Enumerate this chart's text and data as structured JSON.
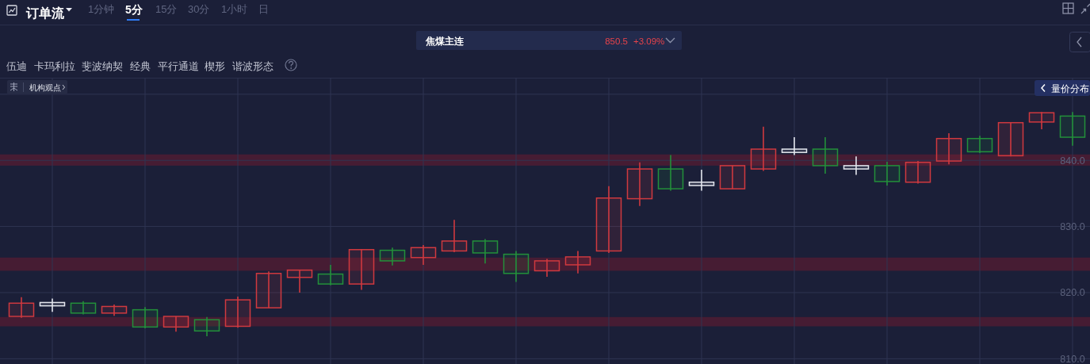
{
  "chart_data": {
    "type": "candlestick",
    "title": "焦煤主连",
    "categories": [
      null,
      null,
      null,
      null,
      null,
      null,
      null,
      null,
      null,
      null,
      null,
      null,
      null,
      null,
      null,
      null,
      null,
      null,
      null,
      null,
      null,
      null,
      null,
      null,
      null,
      null,
      null,
      null,
      null,
      null,
      null,
      null,
      null,
      null,
      null
    ],
    "ohlc": [
      [
        816.4,
        819.3,
        816.2,
        818.4
      ],
      [
        818.0,
        819.1,
        817.1,
        818.5
      ],
      [
        818.4,
        818.7,
        816.7,
        816.9
      ],
      [
        816.9,
        818.2,
        816.5,
        817.9
      ],
      [
        817.4,
        817.8,
        814.6,
        814.8
      ],
      [
        814.8,
        816.4,
        814.1,
        816.4
      ],
      [
        815.9,
        816.3,
        813.4,
        814.2
      ],
      [
        814.9,
        819.4,
        814.7,
        818.9
      ],
      [
        817.7,
        823.2,
        817.7,
        822.9
      ],
      [
        822.3,
        823.4,
        820.0,
        823.4
      ],
      [
        822.8,
        824.2,
        821.1,
        821.3
      ],
      [
        821.3,
        826.6,
        820.4,
        826.5
      ],
      [
        826.4,
        826.8,
        824.1,
        824.8
      ],
      [
        825.3,
        827.2,
        824.2,
        826.8
      ],
      [
        826.3,
        831.0,
        826.1,
        827.8
      ],
      [
        827.8,
        828.1,
        824.4,
        826.0
      ],
      [
        825.8,
        826.3,
        821.6,
        822.9
      ],
      [
        823.3,
        825.1,
        822.4,
        824.8
      ],
      [
        824.2,
        826.3,
        822.9,
        825.4
      ],
      [
        826.3,
        836.1,
        826.0,
        834.3
      ],
      [
        834.2,
        839.7,
        833.1,
        838.7
      ],
      [
        838.7,
        840.8,
        835.4,
        835.7
      ],
      [
        836.2,
        838.6,
        835.4,
        836.7
      ],
      [
        835.7,
        839.2,
        835.7,
        839.2
      ],
      [
        838.7,
        845.1,
        838.4,
        841.7
      ],
      [
        841.2,
        843.5,
        840.8,
        841.7
      ],
      [
        841.7,
        843.5,
        838.0,
        839.2
      ],
      [
        838.7,
        840.6,
        837.8,
        839.2
      ],
      [
        839.2,
        839.8,
        836.2,
        836.8
      ],
      [
        836.7,
        839.9,
        836.5,
        839.7
      ],
      [
        839.9,
        844.1,
        839.4,
        843.3
      ],
      [
        843.3,
        843.7,
        841.1,
        841.3
      ],
      [
        840.7,
        845.7,
        840.6,
        845.7
      ],
      [
        845.8,
        847.3,
        844.7,
        847.2
      ],
      [
        846.7,
        847.3,
        842.2,
        843.5
      ]
    ],
    "colors": [
      "#d0393f",
      "#e4e6ee",
      "#23903a",
      "#d0393f",
      "#23903a",
      "#d0393f",
      "#23903a",
      "#d0393f",
      "#d0393f",
      "#d0393f",
      "#23903a",
      "#d0393f",
      "#23903a",
      "#d0393f",
      "#d0393f",
      "#23903a",
      "#23903a",
      "#d0393f",
      "#d0393f",
      "#d0393f",
      "#d0393f",
      "#23903a",
      "#e4e6ee",
      "#d0393f",
      "#d0393f",
      "#e4e6ee",
      "#23903a",
      "#e4e6ee",
      "#23903a",
      "#d0393f",
      "#d0393f",
      "#23903a",
      "#d0393f",
      "#d0393f",
      "#23903a"
    ],
    "ylim": [
      809.2,
      852.5
    ],
    "yticks": [
      {
        "value": 810,
        "label": "810.0"
      },
      {
        "value": 820,
        "label": "820.0"
      },
      {
        "value": 830,
        "label": "830.0"
      },
      {
        "value": 840,
        "label": "840.0"
      },
      {
        "value": 850,
        "label": null
      }
    ],
    "grid": true,
    "tick_labels": "y",
    "bands": [
      {
        "axis": "y",
        "from": 814.9,
        "to": 816.3,
        "color": "#4d1c33"
      },
      {
        "axis": "y",
        "from": 823.3,
        "to": 825.3,
        "color": "#4d1c33"
      },
      {
        "axis": "y",
        "from": 839.2,
        "to": 840.9,
        "color": "#4d1c33"
      }
    ],
    "annotations": [
      "订单流",
      "1分钟",
      "5分",
      "15分",
      "30分",
      "1小时",
      "日",
      "850.5",
      "+3.09%",
      "伍迪",
      "卡玛利拉",
      "斐波纳契",
      "经典",
      "平行通道",
      "楔形",
      "谐波形态",
      "机构观点",
      "量价分布"
    ]
  }
}
